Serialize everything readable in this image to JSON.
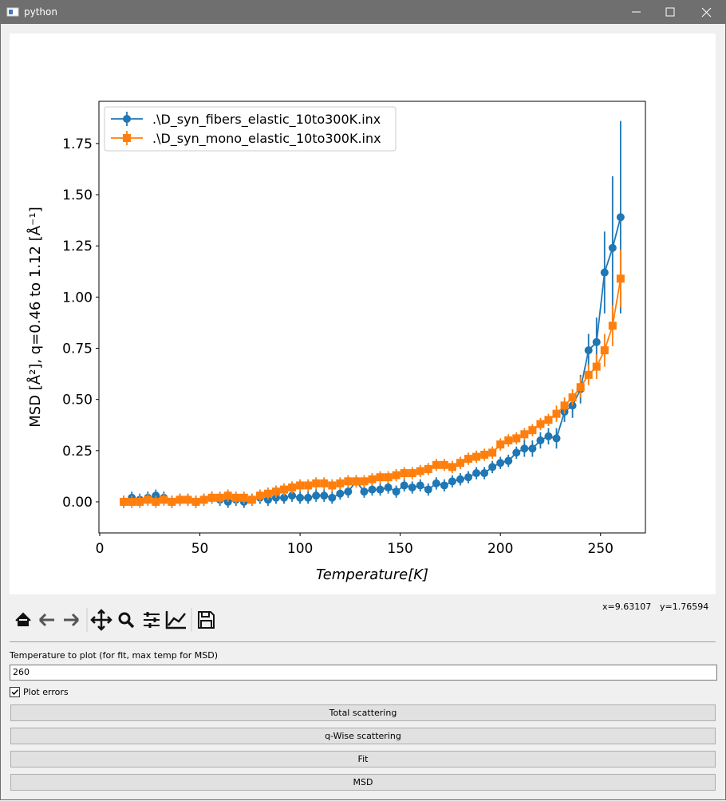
{
  "window": {
    "title": "python"
  },
  "chart_data": {
    "type": "errorbar_line",
    "xlabel": "Temperature[K]",
    "ylabel": "MSD [Å²], q=0.46 to 1.12 [Å⁻¹]",
    "x": [
      12,
      16,
      20,
      24,
      28,
      32,
      36,
      40,
      44,
      48,
      52,
      56,
      60,
      64,
      68,
      72,
      76,
      80,
      84,
      88,
      92,
      96,
      100,
      104,
      108,
      112,
      116,
      120,
      124,
      128,
      132,
      136,
      140,
      144,
      148,
      152,
      156,
      160,
      164,
      168,
      172,
      176,
      180,
      184,
      188,
      192,
      196,
      200,
      204,
      208,
      212,
      216,
      220,
      224,
      228,
      232,
      236,
      240,
      244,
      248,
      252,
      256,
      260
    ],
    "series": [
      {
        "name": ".\\D_syn_fibers_elastic_10to300K.inx",
        "color": "#1f77b4",
        "marker": "circle",
        "values": [
          0.0,
          0.02,
          0.01,
          0.02,
          0.03,
          0.02,
          0.0,
          0.01,
          0.01,
          0.0,
          0.01,
          0.02,
          0.01,
          0.0,
          0.01,
          0.0,
          0.01,
          0.02,
          0.01,
          0.02,
          0.02,
          0.03,
          0.02,
          0.02,
          0.03,
          0.03,
          0.02,
          0.04,
          0.05,
          0.1,
          0.05,
          0.06,
          0.06,
          0.07,
          0.05,
          0.08,
          0.07,
          0.08,
          0.06,
          0.09,
          0.08,
          0.1,
          0.11,
          0.12,
          0.14,
          0.14,
          0.17,
          0.19,
          0.2,
          0.24,
          0.26,
          0.26,
          0.3,
          0.32,
          0.31,
          0.44,
          0.47,
          0.55,
          0.74,
          0.78,
          1.12,
          1.24,
          1.39
        ],
        "errors": [
          0.03,
          0.03,
          0.03,
          0.03,
          0.03,
          0.03,
          0.03,
          0.03,
          0.03,
          0.03,
          0.03,
          0.03,
          0.03,
          0.03,
          0.03,
          0.03,
          0.03,
          0.03,
          0.03,
          0.03,
          0.03,
          0.03,
          0.03,
          0.03,
          0.03,
          0.03,
          0.03,
          0.03,
          0.03,
          0.03,
          0.03,
          0.03,
          0.03,
          0.03,
          0.03,
          0.03,
          0.03,
          0.03,
          0.03,
          0.03,
          0.03,
          0.03,
          0.03,
          0.03,
          0.03,
          0.03,
          0.03,
          0.03,
          0.03,
          0.03,
          0.04,
          0.04,
          0.04,
          0.04,
          0.05,
          0.05,
          0.06,
          0.07,
          0.08,
          0.12,
          0.2,
          0.35,
          0.47
        ]
      },
      {
        "name": ".\\D_syn_mono_elastic_10to300K.inx",
        "color": "#ff7f0e",
        "marker": "square",
        "values": [
          0.0,
          0.0,
          0.0,
          0.01,
          0.0,
          0.01,
          0.0,
          0.01,
          0.01,
          0.0,
          0.01,
          0.02,
          0.02,
          0.03,
          0.02,
          0.02,
          0.01,
          0.03,
          0.04,
          0.05,
          0.06,
          0.07,
          0.08,
          0.08,
          0.09,
          0.09,
          0.08,
          0.09,
          0.1,
          0.1,
          0.1,
          0.11,
          0.12,
          0.12,
          0.13,
          0.14,
          0.14,
          0.15,
          0.16,
          0.18,
          0.18,
          0.17,
          0.19,
          0.21,
          0.22,
          0.23,
          0.24,
          0.28,
          0.3,
          0.31,
          0.33,
          0.35,
          0.38,
          0.4,
          0.43,
          0.47,
          0.51,
          0.56,
          0.62,
          0.66,
          0.74,
          0.86,
          1.09
        ],
        "errors": [
          0.03,
          0.03,
          0.03,
          0.03,
          0.03,
          0.03,
          0.03,
          0.03,
          0.03,
          0.03,
          0.03,
          0.03,
          0.03,
          0.03,
          0.03,
          0.03,
          0.03,
          0.03,
          0.03,
          0.03,
          0.03,
          0.03,
          0.03,
          0.03,
          0.03,
          0.03,
          0.03,
          0.03,
          0.03,
          0.03,
          0.03,
          0.03,
          0.03,
          0.03,
          0.03,
          0.03,
          0.03,
          0.03,
          0.03,
          0.03,
          0.03,
          0.03,
          0.03,
          0.03,
          0.03,
          0.03,
          0.03,
          0.03,
          0.03,
          0.03,
          0.03,
          0.03,
          0.03,
          0.03,
          0.04,
          0.04,
          0.04,
          0.05,
          0.05,
          0.06,
          0.08,
          0.1,
          0.14
        ]
      }
    ],
    "xlim": [
      -0.4,
      272.4
    ],
    "ylim": [
      -0.152,
      1.956
    ],
    "xticks": [
      0,
      50,
      100,
      150,
      200,
      250
    ],
    "yticks": [
      {
        "value": 0,
        "label": "0.00"
      },
      {
        "value": 0.25,
        "label": "0.25"
      },
      {
        "value": 0.5,
        "label": "0.50"
      },
      {
        "value": 0.75,
        "label": "0.75"
      },
      {
        "value": 1,
        "label": "1.00"
      },
      {
        "value": 1.25,
        "label": "1.25"
      },
      {
        "value": 1.5,
        "label": "1.50"
      },
      {
        "value": 1.75,
        "label": "1.75"
      }
    ],
    "grid": false,
    "legend": "upper-left"
  },
  "toolbar": {
    "x_coordinate": "x=9.63107",
    "y_coordinate": "y=1.76594"
  },
  "form": {
    "label": "Temperature to plot (for fit, max temp for MSD)",
    "input_value": "260",
    "checkbox_label": "Plot errors",
    "checkbox_checked": true,
    "buttons": [
      "Total scattering",
      "q-Wise scattering",
      "Fit",
      "MSD"
    ]
  }
}
